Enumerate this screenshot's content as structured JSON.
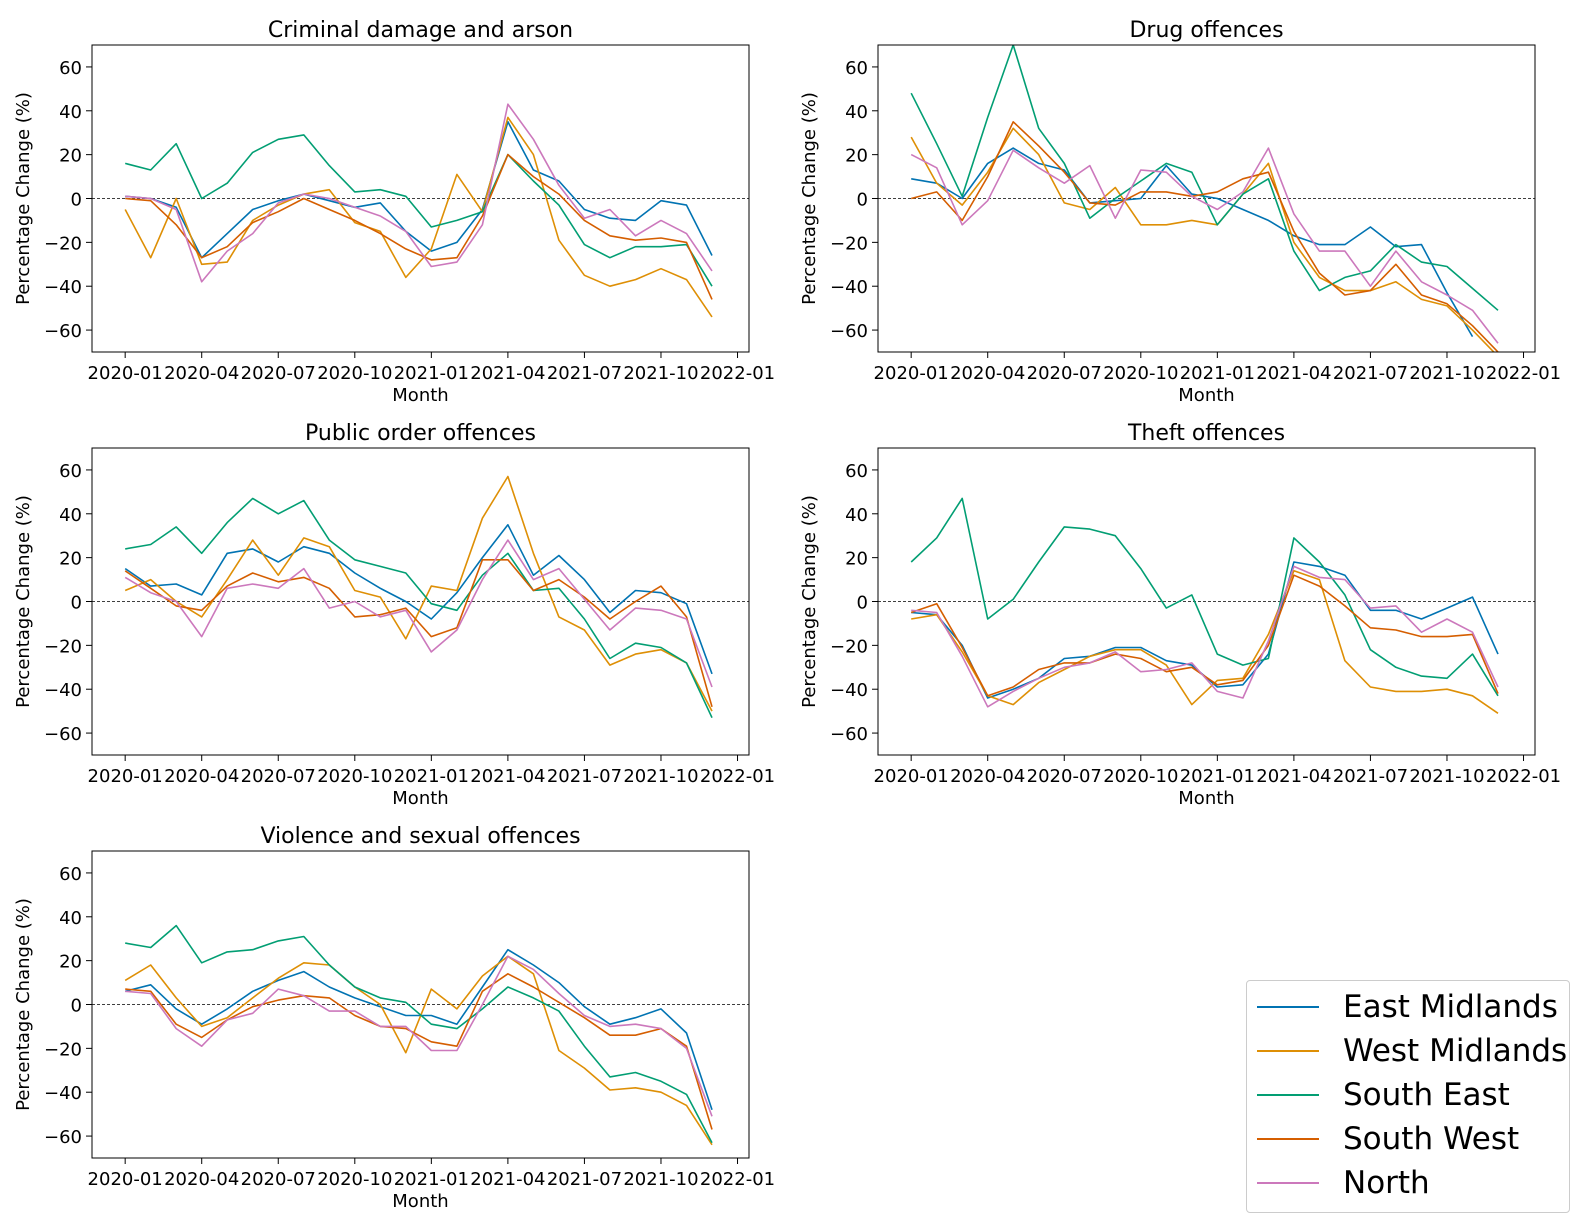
{
  "chart_data": [
    {
      "type": "line",
      "title": "Criminal damage and arson",
      "xlabel": "Month",
      "ylabel": "Percentage Change (%)",
      "ylim": [
        -70,
        70
      ],
      "yticks": [
        -60,
        -40,
        -20,
        0,
        20,
        40,
        60
      ],
      "xticks": [
        "2020-01",
        "2020-04",
        "2020-07",
        "2020-10",
        "2021-01",
        "2021-04",
        "2021-07",
        "2021-10",
        "2022-01"
      ],
      "x": [
        "2020-01",
        "2020-02",
        "2020-03",
        "2020-04",
        "2020-05",
        "2020-06",
        "2020-07",
        "2020-08",
        "2020-09",
        "2020-10",
        "2020-11",
        "2020-12",
        "2021-01",
        "2021-02",
        "2021-03",
        "2021-04",
        "2021-05",
        "2021-06",
        "2021-07",
        "2021-08",
        "2021-09",
        "2021-10",
        "2021-11",
        "2021-12"
      ],
      "reference_line": 0,
      "series": [
        {
          "name": "East Midlands",
          "values": [
            1,
            0,
            -4,
            -27,
            -16,
            -5,
            -1,
            2,
            -1,
            -4,
            -2,
            -15,
            -24,
            -20,
            -5,
            35,
            13,
            8,
            -5,
            -9,
            -10,
            -1,
            -3,
            -26
          ]
        },
        {
          "name": "West Midlands",
          "values": [
            -5,
            -27,
            0,
            -30,
            -29,
            -10,
            -3,
            2,
            4,
            -11,
            -15,
            -36,
            -23,
            11,
            -6,
            37,
            20,
            -19,
            -35,
            -40,
            -37,
            -32,
            -37,
            -54
          ]
        },
        {
          "name": "South East",
          "values": [
            16,
            13,
            25,
            0,
            7,
            21,
            27,
            29,
            15,
            3,
            4,
            1,
            -13,
            -10,
            -6,
            20,
            8,
            -3,
            -21,
            -27,
            -22,
            -22,
            -21,
            -40
          ]
        },
        {
          "name": "South West",
          "values": [
            0,
            -1,
            -12,
            -27,
            -22,
            -11,
            -6,
            0,
            -5,
            -10,
            -16,
            -23,
            -28,
            -27,
            -8,
            20,
            10,
            2,
            -10,
            -17,
            -19,
            -18,
            -20,
            -46
          ]
        },
        {
          "name": "North",
          "values": [
            1,
            0,
            -5,
            -38,
            -24,
            -16,
            -2,
            2,
            0,
            -4,
            -8,
            -15,
            -31,
            -29,
            -12,
            43,
            27,
            6,
            -9,
            -5,
            -17,
            -10,
            -16,
            -33
          ]
        }
      ]
    },
    {
      "type": "line",
      "title": "Drug offences",
      "xlabel": "Month",
      "ylabel": "Percentage Change (%)",
      "ylim": [
        -70,
        70
      ],
      "yticks": [
        -60,
        -40,
        -20,
        0,
        20,
        40,
        60
      ],
      "xticks": [
        "2020-01",
        "2020-04",
        "2020-07",
        "2020-10",
        "2021-01",
        "2021-04",
        "2021-07",
        "2021-10",
        "2022-01"
      ],
      "x": [
        "2020-01",
        "2020-02",
        "2020-03",
        "2020-04",
        "2020-05",
        "2020-06",
        "2020-07",
        "2020-08",
        "2020-09",
        "2020-10",
        "2020-11",
        "2020-12",
        "2021-01",
        "2021-02",
        "2021-03",
        "2021-04",
        "2021-05",
        "2021-06",
        "2021-07",
        "2021-08",
        "2021-09",
        "2021-10",
        "2021-11",
        "2021-12"
      ],
      "reference_line": 0,
      "series": [
        {
          "name": "East Midlands",
          "values": [
            9,
            7,
            0,
            16,
            23,
            16,
            13,
            -2,
            -1,
            0,
            15,
            2,
            0,
            -5,
            -10,
            -17,
            -21,
            -21,
            -13,
            -22,
            -21,
            -43,
            -63,
            null
          ]
        },
        {
          "name": "West Midlands",
          "values": [
            28,
            7,
            -3,
            12,
            32,
            20,
            -2,
            -5,
            5,
            -12,
            -12,
            -10,
            -12,
            2,
            16,
            -20,
            -36,
            -42,
            -42,
            -38,
            -46,
            -49,
            -60,
            -72
          ]
        },
        {
          "name": "South East",
          "values": [
            48,
            25,
            1,
            37,
            70,
            32,
            16,
            -9,
            0,
            8,
            16,
            12,
            -12,
            2,
            9,
            -24,
            -42,
            -36,
            -33,
            -21,
            -29,
            -31,
            -41,
            -51
          ]
        },
        {
          "name": "South West",
          "values": [
            0,
            3,
            -10,
            10,
            35,
            24,
            12,
            -2,
            -3,
            3,
            3,
            1,
            3,
            9,
            12,
            -15,
            -34,
            -44,
            -42,
            -30,
            -44,
            -48,
            -58,
            -70
          ]
        },
        {
          "name": "North",
          "values": [
            20,
            14,
            -12,
            -1,
            22,
            14,
            7,
            15,
            -9,
            13,
            12,
            1,
            -5,
            3,
            23,
            -7,
            -24,
            -24,
            -40,
            -24,
            -38,
            -44,
            -51,
            -66
          ]
        }
      ]
    },
    {
      "type": "line",
      "title": "Public order offences",
      "xlabel": "Month",
      "ylabel": "Percentage Change (%)",
      "ylim": [
        -70,
        70
      ],
      "yticks": [
        -60,
        -40,
        -20,
        0,
        20,
        40,
        60
      ],
      "xticks": [
        "2020-01",
        "2020-04",
        "2020-07",
        "2020-10",
        "2021-01",
        "2021-04",
        "2021-07",
        "2021-10",
        "2022-01"
      ],
      "x": [
        "2020-01",
        "2020-02",
        "2020-03",
        "2020-04",
        "2020-05",
        "2020-06",
        "2020-07",
        "2020-08",
        "2020-09",
        "2020-10",
        "2020-11",
        "2020-12",
        "2021-01",
        "2021-02",
        "2021-03",
        "2021-04",
        "2021-05",
        "2021-06",
        "2021-07",
        "2021-08",
        "2021-09",
        "2021-10",
        "2021-11",
        "2021-12"
      ],
      "reference_line": 0,
      "series": [
        {
          "name": "East Midlands",
          "values": [
            15,
            7,
            8,
            3,
            22,
            24,
            18,
            25,
            22,
            13,
            6,
            0,
            -8,
            4,
            20,
            35,
            12,
            21,
            10,
            -5,
            5,
            4,
            -1,
            -33
          ]
        },
        {
          "name": "West Midlands",
          "values": [
            5,
            10,
            0,
            -7,
            10,
            28,
            12,
            29,
            25,
            5,
            2,
            -17,
            7,
            5,
            38,
            57,
            22,
            -7,
            -13,
            -29,
            -24,
            -22,
            -28,
            -50
          ]
        },
        {
          "name": "South East",
          "values": [
            24,
            26,
            34,
            22,
            36,
            47,
            40,
            46,
            28,
            19,
            16,
            13,
            -1,
            -4,
            12,
            22,
            5,
            6,
            -8,
            -26,
            -19,
            -21,
            -28,
            -53
          ]
        },
        {
          "name": "South West",
          "values": [
            14,
            6,
            -2,
            -4,
            7,
            13,
            9,
            11,
            6,
            -7,
            -6,
            -3,
            -16,
            -12,
            19,
            19,
            5,
            10,
            2,
            -8,
            0,
            7,
            -7,
            -48
          ]
        },
        {
          "name": "North",
          "values": [
            11,
            4,
            0,
            -16,
            6,
            8,
            6,
            15,
            -3,
            0,
            -7,
            -4,
            -23,
            -13,
            10,
            28,
            10,
            15,
            1,
            -13,
            -3,
            -4,
            -8,
            -39
          ]
        }
      ]
    },
    {
      "type": "line",
      "title": "Theft offences",
      "xlabel": "Month",
      "ylabel": "Percentage Change (%)",
      "ylim": [
        -70,
        70
      ],
      "yticks": [
        -60,
        -40,
        -20,
        0,
        20,
        40,
        60
      ],
      "xticks": [
        "2020-01",
        "2020-04",
        "2020-07",
        "2020-10",
        "2021-01",
        "2021-04",
        "2021-07",
        "2021-10",
        "2022-01"
      ],
      "x": [
        "2020-01",
        "2020-02",
        "2020-03",
        "2020-04",
        "2020-05",
        "2020-06",
        "2020-07",
        "2020-08",
        "2020-09",
        "2020-10",
        "2020-11",
        "2020-12",
        "2021-01",
        "2021-02",
        "2021-03",
        "2021-04",
        "2021-05",
        "2021-06",
        "2021-07",
        "2021-08",
        "2021-09",
        "2021-10",
        "2021-11",
        "2021-12"
      ],
      "reference_line": 0,
      "series": [
        {
          "name": "East Midlands",
          "values": [
            -5,
            -6,
            -20,
            -44,
            -40,
            -35,
            -26,
            -25,
            -21,
            -21,
            -27,
            -29,
            -39,
            -38,
            -24,
            18,
            16,
            12,
            -4,
            -4,
            -8,
            -3,
            2,
            -24
          ]
        },
        {
          "name": "West Midlands",
          "values": [
            -8,
            -6,
            -23,
            -43,
            -47,
            -37,
            -31,
            -25,
            -22,
            -22,
            -29,
            -47,
            -36,
            -35,
            -15,
            14,
            10,
            -27,
            -39,
            -41,
            -41,
            -40,
            -43,
            -51
          ]
        },
        {
          "name": "South East",
          "values": [
            18,
            29,
            47,
            -8,
            1,
            18,
            34,
            33,
            30,
            15,
            -3,
            3,
            -24,
            -29,
            -26,
            29,
            18,
            3,
            -22,
            -30,
            -34,
            -35,
            -24,
            -43
          ]
        },
        {
          "name": "South West",
          "values": [
            -5,
            -1,
            -21,
            -43,
            -39,
            -31,
            -28,
            -28,
            -24,
            -26,
            -32,
            -30,
            -38,
            -36,
            -20,
            12,
            7,
            -2,
            -12,
            -13,
            -16,
            -16,
            -15,
            -42
          ]
        },
        {
          "name": "North",
          "values": [
            -4,
            -5,
            -25,
            -48,
            -41,
            -35,
            -30,
            -28,
            -23,
            -32,
            -31,
            -28,
            -41,
            -44,
            -18,
            16,
            11,
            10,
            -3,
            -2,
            -14,
            -8,
            -14,
            -39
          ]
        }
      ]
    },
    {
      "type": "line",
      "title": "Violence and sexual offences",
      "xlabel": "Month",
      "ylabel": "Percentage Change (%)",
      "ylim": [
        -70,
        70
      ],
      "yticks": [
        -60,
        -40,
        -20,
        0,
        20,
        40,
        60
      ],
      "xticks": [
        "2020-01",
        "2020-04",
        "2020-07",
        "2020-10",
        "2021-01",
        "2021-04",
        "2021-07",
        "2021-10",
        "2022-01"
      ],
      "x": [
        "2020-01",
        "2020-02",
        "2020-03",
        "2020-04",
        "2020-05",
        "2020-06",
        "2020-07",
        "2020-08",
        "2020-09",
        "2020-10",
        "2020-11",
        "2020-12",
        "2021-01",
        "2021-02",
        "2021-03",
        "2021-04",
        "2021-05",
        "2021-06",
        "2021-07",
        "2021-08",
        "2021-09",
        "2021-10",
        "2021-11",
        "2021-12"
      ],
      "reference_line": 0,
      "series": [
        {
          "name": "East Midlands",
          "values": [
            6,
            9,
            -2,
            -9,
            -2,
            6,
            11,
            15,
            8,
            3,
            -1,
            -5,
            -5,
            -9,
            8,
            25,
            18,
            10,
            -1,
            -9,
            -6,
            -2,
            -13,
            -48
          ]
        },
        {
          "name": "West Midlands",
          "values": [
            11,
            18,
            3,
            -10,
            -6,
            3,
            12,
            19,
            18,
            8,
            0,
            -22,
            7,
            -2,
            13,
            22,
            14,
            -21,
            -29,
            -39,
            -38,
            -40,
            -46,
            -64
          ]
        },
        {
          "name": "South East",
          "values": [
            28,
            26,
            36,
            19,
            24,
            25,
            29,
            31,
            18,
            8,
            3,
            1,
            -9,
            -11,
            -2,
            8,
            3,
            -3,
            -19,
            -33,
            -31,
            -35,
            -41,
            -63
          ]
        },
        {
          "name": "South West",
          "values": [
            7,
            6,
            -9,
            -15,
            -7,
            -1,
            2,
            4,
            3,
            -5,
            -10,
            -11,
            -17,
            -19,
            6,
            14,
            8,
            1,
            -6,
            -14,
            -14,
            -11,
            -19,
            -57
          ]
        },
        {
          "name": "North",
          "values": [
            6,
            5,
            -11,
            -19,
            -7,
            -4,
            7,
            4,
            -3,
            -3,
            -10,
            -10,
            -21,
            -21,
            0,
            22,
            16,
            5,
            -5,
            -10,
            -9,
            -11,
            -20,
            -51
          ]
        }
      ]
    }
  ],
  "legend": {
    "entries": [
      {
        "label": "East Midlands",
        "color": "#0173b2"
      },
      {
        "label": "West Midlands",
        "color": "#de8f05"
      },
      {
        "label": "South East",
        "color": "#029e73"
      },
      {
        "label": "South West",
        "color": "#d55e00"
      },
      {
        "label": "North",
        "color": "#cc78bc"
      }
    ]
  },
  "colors": {
    "East Midlands": "#0173b2",
    "West Midlands": "#de8f05",
    "South East": "#029e73",
    "South West": "#d55e00",
    "North": "#cc78bc"
  }
}
